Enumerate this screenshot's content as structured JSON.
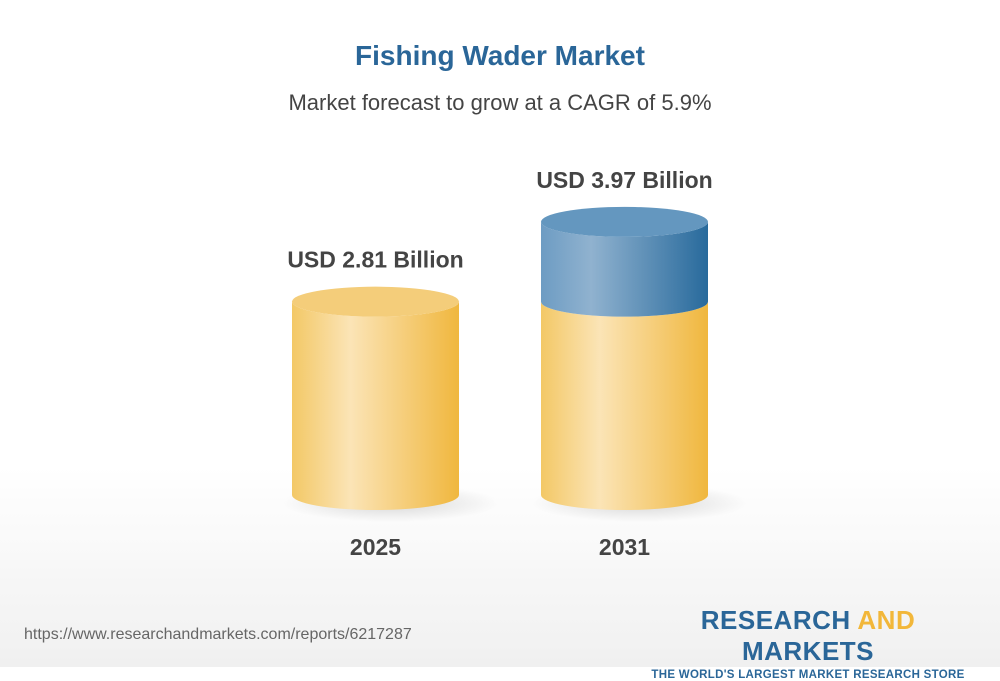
{
  "chart_data": {
    "type": "bar",
    "style": "3d-cylinder",
    "title": "Fishing Wader Market",
    "subtitle": "Market forecast to grow at a CAGR of 5.9%",
    "categories": [
      "2025",
      "2031"
    ],
    "values": [
      2.81,
      3.97
    ],
    "data_labels": [
      "USD 2.81 Billion",
      "USD 3.97 Billion"
    ],
    "unit": "USD Billion",
    "colors": {
      "base": "#f2c55c",
      "growth": "#4f86b5"
    },
    "grid": false
  },
  "footer": {
    "url": "https://www.researchandmarkets.com/reports/6217287",
    "logo_part1": "RESEARCH ",
    "logo_part2": "AND",
    "logo_part3": " MARKETS",
    "tagline": "THE WORLD'S LARGEST MARKET RESEARCH STORE"
  }
}
